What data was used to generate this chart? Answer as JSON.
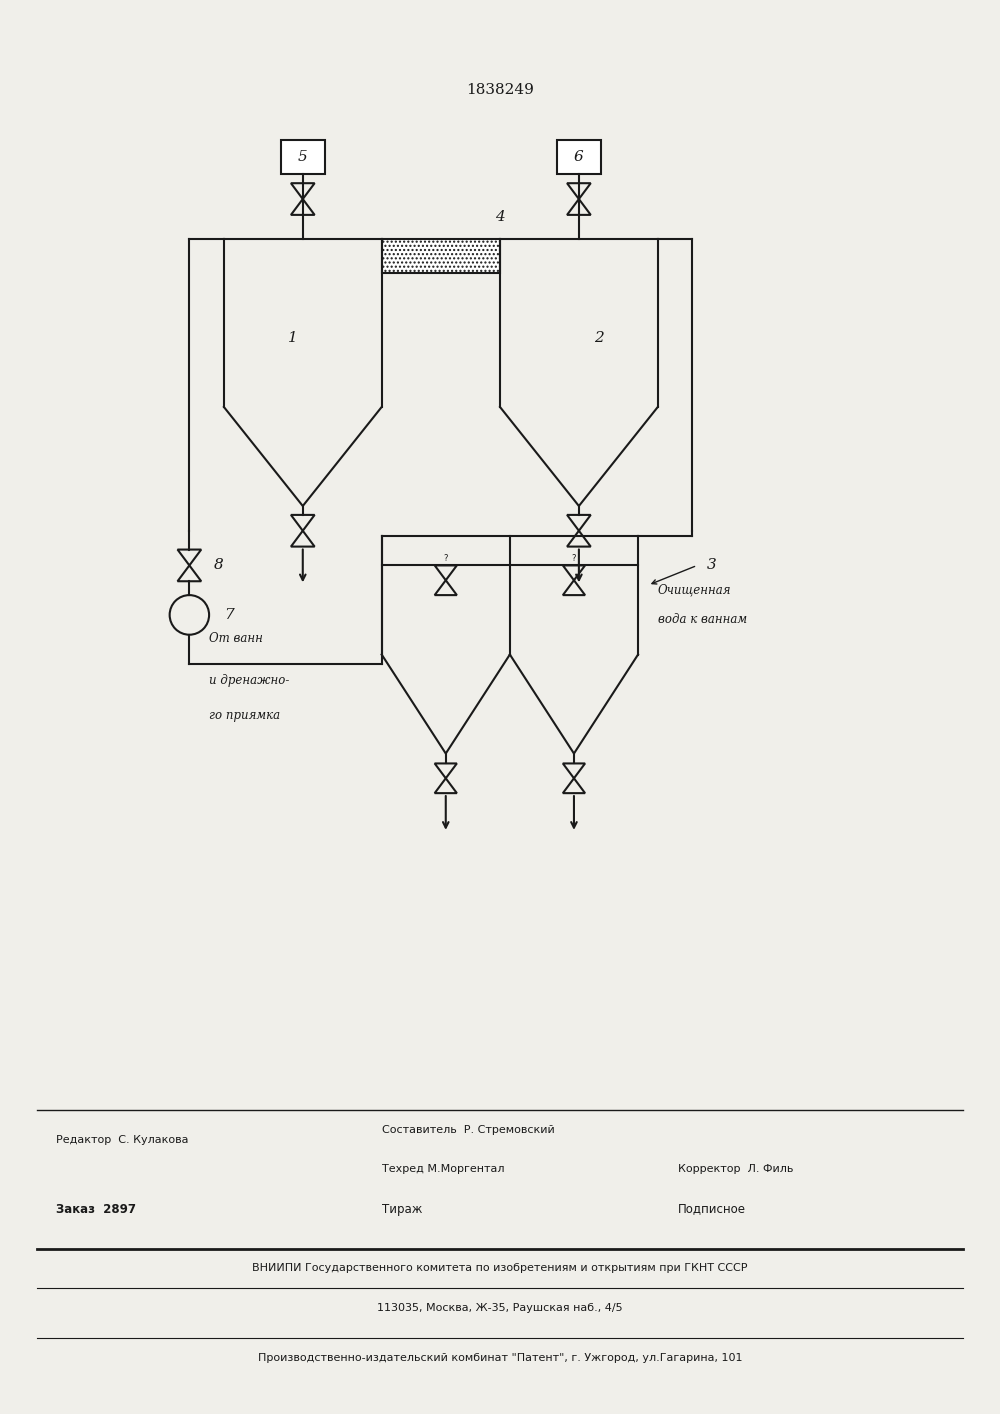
{
  "title": "1838249",
  "bg_color": "#f0efea",
  "line_color": "#1a1a1a",
  "figsize": [
    10.0,
    14.14
  ],
  "dpi": 100,
  "footer": {
    "line1_left": "Редактор  С. Кулакова",
    "line1_center": "Составитель  Р. Стремовский",
    "line2_center": "Техред М.Моргентал",
    "line2_right": "Корректор  Л. Филь",
    "line3_left": "Заказ  2897",
    "line3_center": "Тираж",
    "line3_right": "Подписное",
    "line4": "ВНИИПИ Государственного комитета по изобретениям и открытиям при ГКНТ СССР",
    "line5": "113035, Москва, Ж-35, Раушская наб., 4/5",
    "line6": "Производственно-издательский комбинат \"Патент\", г. Ужгород, ул.Гагарина, 101"
  }
}
